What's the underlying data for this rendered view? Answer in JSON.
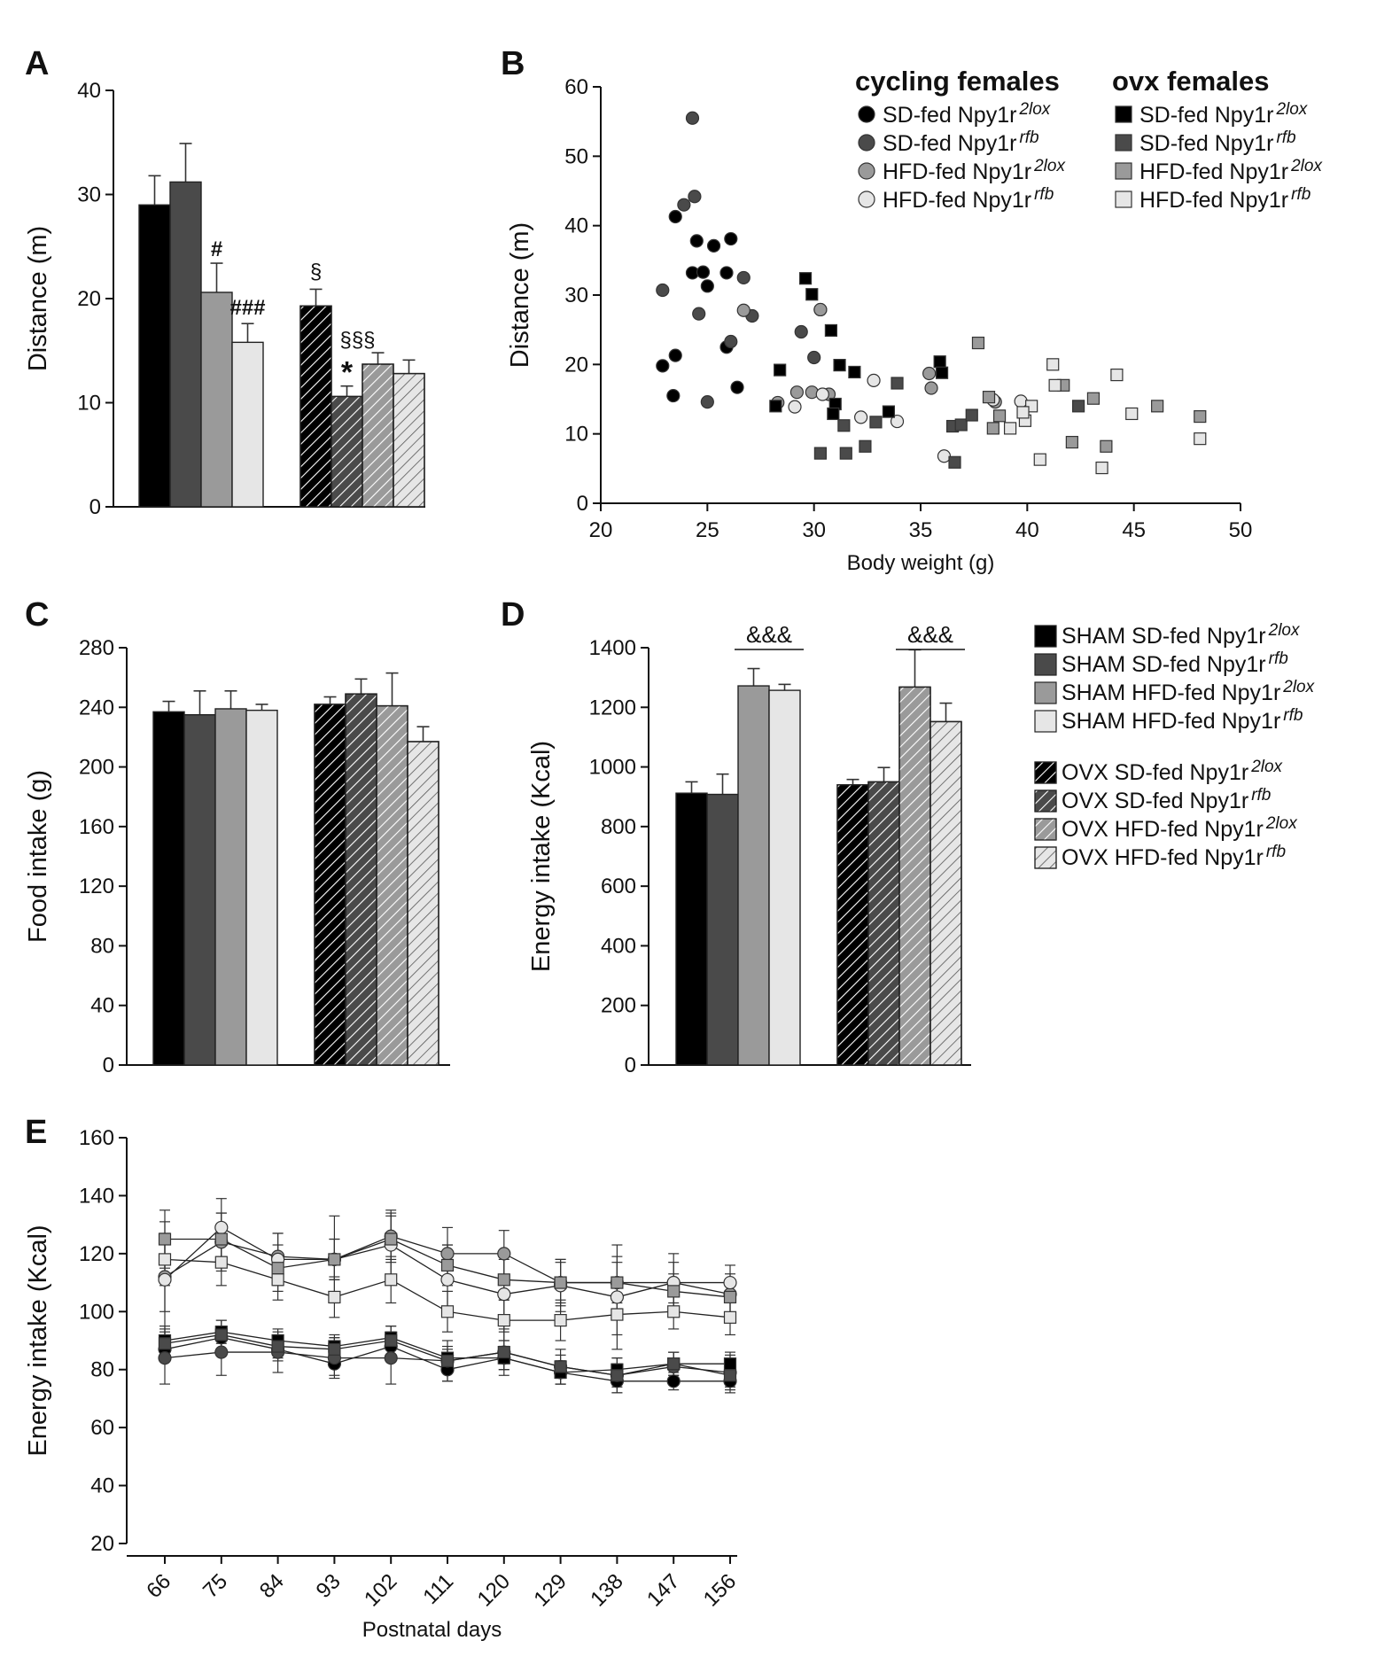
{
  "chart_data": [
    {
      "panel": "A",
      "type": "bar",
      "ylabel": "Distance (m)",
      "ylim": [
        0,
        40
      ],
      "yticks": [
        "0",
        "10",
        "20",
        "30",
        "40"
      ],
      "groups": [
        "cycling",
        "ovx"
      ],
      "series": [
        {
          "name": "SD-fed Npy1r 2lox",
          "values": [
            29.0,
            19.3
          ],
          "errors": [
            2.8,
            1.6
          ],
          "fill": "#000000"
        },
        {
          "name": "SD-fed Npy1r rfb",
          "values": [
            31.2,
            10.6
          ],
          "errors": [
            3.7,
            1.0
          ],
          "fill": "#4a4a4a"
        },
        {
          "name": "HFD-fed Npy1r 2lox",
          "values": [
            20.6,
            13.7
          ],
          "errors": [
            2.8,
            1.1
          ],
          "fill": "#9a9a9a"
        },
        {
          "name": "HFD-fed Npy1r rfb",
          "values": [
            15.8,
            12.8
          ],
          "errors": [
            1.8,
            1.3
          ],
          "fill": "#e6e6e6"
        }
      ],
      "annotations": [
        "#",
        "###",
        "§",
        "§§§",
        "*"
      ]
    },
    {
      "panel": "B",
      "type": "scatter",
      "xlabel": "Body weight (g)",
      "ylabel": "Distance (m)",
      "xlim": [
        20,
        50
      ],
      "ylim": [
        0,
        60
      ],
      "xticks": [
        "20",
        "25",
        "30",
        "35",
        "40",
        "45",
        "50"
      ],
      "yticks": [
        "0",
        "10",
        "20",
        "30",
        "40",
        "50",
        "60"
      ],
      "legend_headers": [
        "cycling females",
        "ovx females"
      ],
      "series": [
        {
          "name": "SD-fed Npy1r",
          "sup": "2lox",
          "marker": "circle",
          "color": "#000000",
          "points": [
            [
              23.5,
              41.3
            ],
            [
              24.3,
              33.2
            ],
            [
              24.5,
              37.8
            ],
            [
              24.8,
              33.3
            ],
            [
              25.0,
              31.3
            ],
            [
              25.3,
              37.1
            ],
            [
              25.9,
              33.2
            ],
            [
              26.1,
              38.1
            ],
            [
              25.9,
              22.5
            ],
            [
              26.4,
              16.7
            ],
            [
              23.5,
              21.3
            ],
            [
              23.4,
              15.5
            ],
            [
              22.9,
              19.8
            ]
          ]
        },
        {
          "name": "SD-fed Npy1r",
          "sup": "rfb",
          "marker": "circle",
          "color": "#4a4a4a",
          "points": [
            [
              24.3,
              55.5
            ],
            [
              24.4,
              44.2
            ],
            [
              23.9,
              43.0
            ],
            [
              22.9,
              30.7
            ],
            [
              24.6,
              27.3
            ],
            [
              26.1,
              23.3
            ],
            [
              26.7,
              32.5
            ],
            [
              27.1,
              27.0
            ],
            [
              25.0,
              14.6
            ],
            [
              29.4,
              24.7
            ],
            [
              30.0,
              21.0
            ],
            [
              30.3,
              27.9
            ]
          ]
        },
        {
          "name": "HFD-fed Npy1r",
          "sup": "2lox",
          "marker": "circle",
          "color": "#9a9a9a",
          "points": [
            [
              26.7,
              27.8
            ],
            [
              28.3,
              14.5
            ],
            [
              29.2,
              16.0
            ],
            [
              29.9,
              16.0
            ],
            [
              30.7,
              15.7
            ],
            [
              30.3,
              27.9
            ],
            [
              35.4,
              18.7
            ],
            [
              35.5,
              16.6
            ],
            [
              38.5,
              14.6
            ]
          ]
        },
        {
          "name": "HFD-fed Npy1r",
          "sup": "rfb",
          "marker": "circle",
          "color": "#e6e6e6",
          "points": [
            [
              29.1,
              13.9
            ],
            [
              30.4,
              15.7
            ],
            [
              32.2,
              12.4
            ],
            [
              32.8,
              17.7
            ],
            [
              33.9,
              11.8
            ],
            [
              36.1,
              6.8
            ],
            [
              38.4,
              14.9
            ],
            [
              39.7,
              14.7
            ]
          ]
        },
        {
          "name": "SD-fed Npy1r",
          "sup": "2lox",
          "marker": "square",
          "color": "#000000",
          "points": [
            [
              28.2,
              14.0
            ],
            [
              28.4,
              19.2
            ],
            [
              29.6,
              32.4
            ],
            [
              29.9,
              30.1
            ],
            [
              30.8,
              24.9
            ],
            [
              31.0,
              14.3
            ],
            [
              31.2,
              19.9
            ],
            [
              31.9,
              18.9
            ],
            [
              33.5,
              13.2
            ],
            [
              35.9,
              20.4
            ],
            [
              36.0,
              18.8
            ],
            [
              30.9,
              12.9
            ]
          ]
        },
        {
          "name": "SD-fed Npy1r",
          "sup": "rfb",
          "marker": "square",
          "color": "#4a4a4a",
          "points": [
            [
              30.3,
              7.2
            ],
            [
              31.4,
              11.2
            ],
            [
              31.5,
              7.2
            ],
            [
              32.4,
              8.2
            ],
            [
              32.9,
              11.7
            ],
            [
              33.9,
              17.3
            ],
            [
              36.5,
              11.1
            ],
            [
              36.9,
              11.3
            ],
            [
              37.4,
              12.7
            ],
            [
              36.6,
              5.9
            ],
            [
              42.4,
              14.0
            ]
          ]
        },
        {
          "name": "HFD-fed Npy1r",
          "sup": "2lox",
          "marker": "square",
          "color": "#9a9a9a",
          "points": [
            [
              37.7,
              23.1
            ],
            [
              38.2,
              15.3
            ],
            [
              38.7,
              12.6
            ],
            [
              38.4,
              10.8
            ],
            [
              41.7,
              17.0
            ],
            [
              42.1,
              8.8
            ],
            [
              43.1,
              15.1
            ],
            [
              43.7,
              8.2
            ],
            [
              46.1,
              14.0
            ],
            [
              48.1,
              12.5
            ]
          ]
        },
        {
          "name": "HFD-fed Npy1r",
          "sup": "rfb",
          "marker": "square",
          "color": "#e6e6e6",
          "points": [
            [
              39.2,
              10.8
            ],
            [
              39.9,
              11.9
            ],
            [
              40.2,
              14.0
            ],
            [
              40.6,
              6.3
            ],
            [
              41.2,
              20.0
            ],
            [
              41.3,
              17.0
            ],
            [
              43.5,
              5.1
            ],
            [
              44.2,
              18.5
            ],
            [
              44.9,
              12.9
            ],
            [
              48.1,
              9.3
            ],
            [
              39.8,
              13.1
            ]
          ]
        }
      ]
    },
    {
      "panel": "C",
      "type": "bar",
      "ylabel": "Food intake (g)",
      "ylim": [
        0,
        280
      ],
      "yticks": [
        "0",
        "40",
        "80",
        "120",
        "160",
        "200",
        "240",
        "280"
      ],
      "groups": [
        "SHAM",
        "OVX"
      ],
      "series": [
        {
          "name": "SD-fed Npy1r 2lox",
          "values": [
            237,
            242
          ],
          "errors": [
            7,
            5
          ],
          "fill": "#000000"
        },
        {
          "name": "SD-fed Npy1r rfb",
          "values": [
            235,
            249
          ],
          "errors": [
            16,
            10
          ],
          "fill": "#4a4a4a"
        },
        {
          "name": "HFD-fed Npy1r 2lox",
          "values": [
            239,
            241
          ],
          "errors": [
            12,
            22
          ],
          "fill": "#9a9a9a"
        },
        {
          "name": "HFD-fed Npy1r rfb",
          "values": [
            238,
            217
          ],
          "errors": [
            4,
            10
          ],
          "fill": "#e6e6e6"
        }
      ]
    },
    {
      "panel": "D",
      "type": "bar",
      "ylabel": "Energy intake (Kcal)",
      "ylim": [
        0,
        1400
      ],
      "yticks": [
        "0",
        "200",
        "400",
        "600",
        "800",
        "1000",
        "1200",
        "1400"
      ],
      "groups": [
        "SHAM",
        "OVX"
      ],
      "series": [
        {
          "name": "SD-fed Npy1r 2lox",
          "values": [
            912,
            940
          ],
          "errors": [
            38,
            18
          ],
          "fill": "#000000"
        },
        {
          "name": "SD-fed Npy1r rfb",
          "values": [
            908,
            950
          ],
          "errors": [
            68,
            48
          ],
          "fill": "#4a4a4a"
        },
        {
          "name": "HFD-fed Npy1r 2lox",
          "values": [
            1272,
            1268
          ],
          "errors": [
            58,
            125
          ],
          "fill": "#9a9a9a"
        },
        {
          "name": "HFD-fed Npy1r rfb",
          "values": [
            1257,
            1152
          ],
          "errors": [
            20,
            62
          ],
          "fill": "#e6e6e6"
        }
      ],
      "annotations": [
        "&&&",
        "&&&"
      ],
      "legend": [
        {
          "group": "SHAM",
          "diet": "SD-fed Npy1r",
          "sup": "2lox",
          "fill": "#000000",
          "hatched": false
        },
        {
          "group": "SHAM",
          "diet": "SD-fed Npy1r",
          "sup": "rfb",
          "fill": "#4a4a4a",
          "hatched": false
        },
        {
          "group": "SHAM",
          "diet": "HFD-fed Npy1r",
          "sup": "2lox",
          "fill": "#9a9a9a",
          "hatched": false
        },
        {
          "group": "SHAM",
          "diet": "HFD-fed Npy1r",
          "sup": "rfb",
          "fill": "#e6e6e6",
          "hatched": false
        },
        {
          "group": "OVX",
          "diet": "SD-fed Npy1r",
          "sup": "2lox",
          "fill": "#000000",
          "hatched": true
        },
        {
          "group": "OVX",
          "diet": "SD-fed Npy1r",
          "sup": "rfb",
          "fill": "#4a4a4a",
          "hatched": true
        },
        {
          "group": "OVX",
          "diet": "HFD-fed Npy1r",
          "sup": "2lox",
          "fill": "#9a9a9a",
          "hatched": true
        },
        {
          "group": "OVX",
          "diet": "HFD-fed Npy1r",
          "sup": "rfb",
          "fill": "#e6e6e6",
          "hatched": true
        }
      ]
    },
    {
      "panel": "E",
      "type": "line",
      "xlabel": "Postnatal days",
      "ylabel": "Energy intake (Kcal)",
      "ylim": [
        20,
        160
      ],
      "yticks": [
        "20",
        "40",
        "60",
        "80",
        "100",
        "120",
        "140",
        "160"
      ],
      "x": [
        "66",
        "75",
        "84",
        "93",
        "102",
        "111",
        "120",
        "129",
        "138",
        "147",
        "156"
      ],
      "series": [
        {
          "name": "SD 2lox cycling",
          "marker": "circle",
          "color": "#000000",
          "values": [
            87,
            91,
            87,
            82,
            88,
            80,
            84,
            79,
            76,
            76,
            76
          ],
          "errors": [
            4,
            4,
            4,
            4,
            4,
            4,
            4,
            4,
            4,
            3,
            4
          ]
        },
        {
          "name": "SD rfb cycling",
          "marker": "circle",
          "color": "#4a4a4a",
          "values": [
            84,
            86,
            86,
            84,
            84,
            83,
            86,
            81,
            78,
            81,
            79
          ],
          "errors": [
            9,
            8,
            7,
            7,
            9,
            7,
            8,
            6,
            6,
            5,
            6
          ]
        },
        {
          "name": "HFD 2lox cycling",
          "marker": "circle",
          "color": "#9a9a9a",
          "values": [
            112,
            124,
            119,
            118,
            126,
            120,
            120,
            110,
            110,
            110,
            106
          ],
          "errors": [
            12,
            10,
            8,
            7,
            8,
            9,
            8,
            8,
            9,
            7,
            7
          ]
        },
        {
          "name": "HFD rfb cycling",
          "marker": "circle",
          "color": "#e6e6e6",
          "values": [
            111,
            129,
            118,
            118,
            123,
            111,
            106,
            109,
            105,
            110,
            110
          ],
          "errors": [
            20,
            10,
            9,
            15,
            12,
            12,
            13,
            9,
            18,
            10,
            6
          ]
        },
        {
          "name": "SD 2lox ovx",
          "marker": "square",
          "color": "#000000",
          "values": [
            90,
            93,
            90,
            88,
            91,
            84,
            84,
            79,
            80,
            82,
            82
          ],
          "errors": [
            5,
            4,
            4,
            4,
            4,
            4,
            4,
            4,
            4,
            4,
            4
          ]
        },
        {
          "name": "SD rfb ovx",
          "marker": "square",
          "color": "#4a4a4a",
          "values": [
            89,
            92,
            88,
            87,
            90,
            83,
            86,
            81,
            78,
            82,
            78
          ],
          "errors": [
            5,
            5,
            4,
            4,
            5,
            4,
            4,
            4,
            4,
            4,
            4
          ]
        },
        {
          "name": "HFD 2lox ovx",
          "marker": "square",
          "color": "#9a9a9a",
          "values": [
            125,
            125,
            115,
            118,
            125,
            116,
            111,
            110,
            110,
            107,
            105
          ],
          "errors": [
            10,
            9,
            8,
            7,
            8,
            7,
            7,
            7,
            7,
            6,
            6
          ]
        },
        {
          "name": "HFD rfb ovx",
          "marker": "square",
          "color": "#e6e6e6",
          "values": [
            118,
            117,
            111,
            105,
            111,
            100,
            97,
            97,
            99,
            100,
            98
          ],
          "errors": [
            9,
            8,
            7,
            7,
            8,
            7,
            7,
            7,
            7,
            6,
            6
          ]
        }
      ]
    }
  ]
}
